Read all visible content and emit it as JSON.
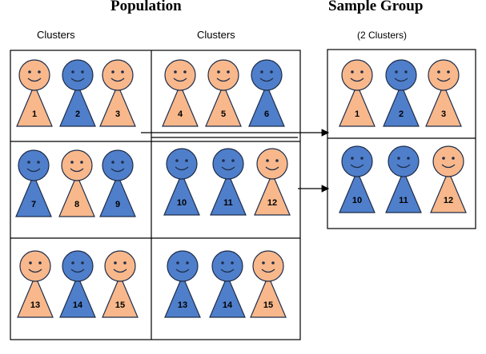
{
  "headings": {
    "population": "Population",
    "sample_group": "Sample Group",
    "clusters_left": "Clusters",
    "clusters_right": "Clusters",
    "sample_note": "(2 Clusters)"
  },
  "colors": {
    "orange": "#F8B88B",
    "blue": "#4F7FCB",
    "outline": "#1F2D4A",
    "line": "#000000"
  },
  "population": [
    {
      "label": "cluster-1",
      "people": [
        {
          "number": "1",
          "color": "orange"
        },
        {
          "number": "2",
          "color": "blue"
        },
        {
          "number": "3",
          "color": "orange"
        }
      ]
    },
    {
      "label": "cluster-2",
      "people": [
        {
          "number": "4",
          "color": "orange"
        },
        {
          "number": "5",
          "color": "orange"
        },
        {
          "number": "6",
          "color": "blue"
        }
      ]
    },
    {
      "label": "cluster-3",
      "people": [
        {
          "number": "7",
          "color": "blue"
        },
        {
          "number": "8",
          "color": "orange"
        },
        {
          "number": "9",
          "color": "blue"
        }
      ]
    },
    {
      "label": "cluster-4",
      "people": [
        {
          "number": "10",
          "color": "blue"
        },
        {
          "number": "11",
          "color": "blue"
        },
        {
          "number": "12",
          "color": "orange"
        }
      ]
    },
    {
      "label": "cluster-5",
      "people": [
        {
          "number": "13",
          "color": "orange"
        },
        {
          "number": "14",
          "color": "blue"
        },
        {
          "number": "15",
          "color": "orange"
        }
      ]
    },
    {
      "label": "cluster-6",
      "people": [
        {
          "number": "13",
          "color": "blue"
        },
        {
          "number": "14",
          "color": "blue"
        },
        {
          "number": "15",
          "color": "orange"
        }
      ]
    }
  ],
  "sample": [
    {
      "label": "sample-cluster-1",
      "people": [
        {
          "number": "1",
          "color": "orange"
        },
        {
          "number": "2",
          "color": "blue"
        },
        {
          "number": "3",
          "color": "orange"
        }
      ]
    },
    {
      "label": "sample-cluster-2",
      "people": [
        {
          "number": "10",
          "color": "blue"
        },
        {
          "number": "11",
          "color": "blue"
        },
        {
          "number": "12",
          "color": "orange"
        }
      ]
    }
  ]
}
